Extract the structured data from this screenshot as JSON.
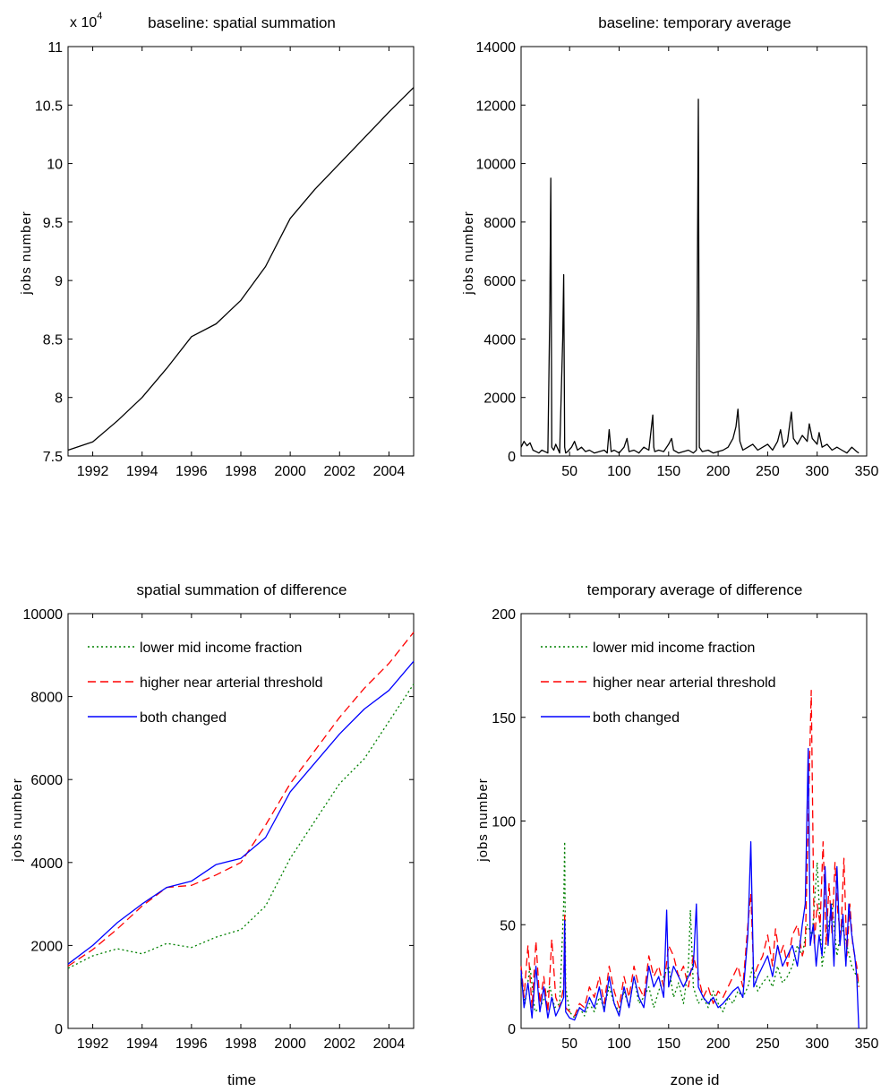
{
  "chart_data": [
    {
      "type": "line",
      "title": "baseline: spatial summation",
      "xlabel": "",
      "ylabel": "jobs number",
      "y_exponent_label": "x 10",
      "y_exponent_power": "4",
      "xlim": [
        1991,
        2005
      ],
      "ylim": [
        7.5,
        11
      ],
      "xticks": [
        1992,
        1994,
        1996,
        1998,
        2000,
        2002,
        2004
      ],
      "yticks": [
        7.5,
        8,
        8.5,
        9,
        9.5,
        10,
        10.5,
        11
      ],
      "ytick_labels": [
        "7.5",
        "8",
        "8.5",
        "9",
        "9.5",
        "10",
        "10.5",
        "11"
      ],
      "grid": false,
      "series": [
        {
          "color": "#000000",
          "dash": "solid",
          "x": [
            1991,
            1992,
            1993,
            1994,
            1995,
            1996,
            1997,
            1998,
            1999,
            2000,
            2001,
            2002,
            2003,
            2004,
            2005
          ],
          "y": [
            7.55,
            7.62,
            7.8,
            8.0,
            8.25,
            8.52,
            8.63,
            8.83,
            9.12,
            9.53,
            9.78,
            10.0,
            10.22,
            10.44,
            10.65
          ]
        }
      ]
    },
    {
      "type": "line",
      "title": "baseline: temporary average",
      "xlabel": "",
      "ylabel": "jobs number",
      "xlim": [
        1,
        350
      ],
      "ylim": [
        0,
        14000
      ],
      "xticks": [
        50,
        100,
        150,
        200,
        250,
        300,
        350
      ],
      "yticks": [
        0,
        2000,
        4000,
        6000,
        8000,
        10000,
        12000,
        14000
      ],
      "grid": false,
      "series": [
        {
          "color": "#000000",
          "dash": "solid",
          "x": [
            1,
            4,
            7,
            10,
            13,
            16,
            19,
            22,
            25,
            28,
            30,
            31,
            32,
            34,
            36,
            40,
            43,
            44,
            45,
            46,
            48,
            52,
            55,
            58,
            62,
            66,
            70,
            75,
            80,
            85,
            88,
            90,
            92,
            95,
            100,
            105,
            108,
            110,
            115,
            120,
            125,
            130,
            134,
            135,
            136,
            140,
            145,
            150,
            153,
            155,
            160,
            165,
            170,
            175,
            178,
            179,
            180,
            181,
            184,
            190,
            195,
            200,
            205,
            210,
            215,
            218,
            220,
            222,
            225,
            230,
            235,
            240,
            245,
            250,
            255,
            260,
            263,
            266,
            270,
            274,
            276,
            280,
            285,
            290,
            292,
            295,
            300,
            302,
            305,
            310,
            315,
            320,
            325,
            330,
            335,
            340,
            342
          ],
          "y": [
            300,
            500,
            350,
            450,
            200,
            150,
            100,
            200,
            150,
            100,
            5000,
            9500,
            300,
            200,
            400,
            100,
            4000,
            6200,
            300,
            100,
            150,
            300,
            500,
            200,
            300,
            150,
            200,
            100,
            150,
            200,
            100,
            900,
            150,
            200,
            100,
            300,
            600,
            150,
            200,
            100,
            300,
            200,
            1400,
            300,
            150,
            200,
            150,
            400,
            600,
            200,
            100,
            150,
            200,
            100,
            200,
            6100,
            12200,
            300,
            150,
            200,
            100,
            150,
            200,
            300,
            600,
            1000,
            1600,
            500,
            200,
            300,
            400,
            200,
            300,
            400,
            200,
            500,
            900,
            300,
            500,
            1500,
            600,
            400,
            700,
            500,
            1100,
            600,
            400,
            800,
            300,
            400,
            200,
            300,
            200,
            100,
            300,
            150,
            100
          ]
        }
      ]
    },
    {
      "type": "line",
      "title": "spatial summation of difference",
      "xlabel": "time",
      "ylabel": "jobs number",
      "xlim": [
        1991,
        2005
      ],
      "ylim": [
        0,
        10000
      ],
      "xticks": [
        1992,
        1994,
        1996,
        1998,
        2000,
        2002,
        2004
      ],
      "yticks": [
        0,
        2000,
        4000,
        6000,
        8000,
        10000
      ],
      "grid": false,
      "legend_position": "top-left",
      "series": [
        {
          "name": "lower mid income fraction",
          "color": "#008000",
          "dash": "dotted",
          "x": [
            1991,
            1992,
            1993,
            1994,
            1995,
            1996,
            1997,
            1998,
            1999,
            2000,
            2001,
            2002,
            2003,
            2004,
            2005
          ],
          "y": [
            1450,
            1750,
            1920,
            1800,
            2050,
            1950,
            2200,
            2380,
            2950,
            4100,
            5000,
            5900,
            6500,
            7400,
            8300
          ]
        },
        {
          "name": "higher near arterial threshold",
          "color": "#ff0000",
          "dash": "dashed",
          "x": [
            1991,
            1992,
            1993,
            1994,
            1995,
            1996,
            1997,
            1998,
            1999,
            2000,
            2001,
            2002,
            2003,
            2004,
            2005
          ],
          "y": [
            1500,
            1900,
            2400,
            2950,
            3400,
            3450,
            3700,
            4000,
            4900,
            5900,
            6700,
            7500,
            8200,
            8800,
            9550
          ]
        },
        {
          "name": "both changed",
          "color": "#0000ff",
          "dash": "solid",
          "x": [
            1991,
            1992,
            1993,
            1994,
            1995,
            1996,
            1997,
            1998,
            1999,
            2000,
            2001,
            2002,
            2003,
            2004,
            2005
          ],
          "y": [
            1550,
            2000,
            2550,
            3000,
            3400,
            3550,
            3950,
            4100,
            4600,
            5700,
            6400,
            7100,
            7700,
            8150,
            8850
          ]
        }
      ]
    },
    {
      "type": "line",
      "title": "temporary average of difference",
      "xlabel": "zone id",
      "ylabel": "jobs number",
      "xlim": [
        1,
        350
      ],
      "ylim": [
        0,
        200
      ],
      "xticks": [
        50,
        100,
        150,
        200,
        250,
        300,
        350
      ],
      "yticks": [
        0,
        50,
        100,
        150,
        200
      ],
      "grid": false,
      "legend_position": "top-left",
      "series": [
        {
          "name": "lower mid income fraction",
          "color": "#008000",
          "dash": "dotted",
          "x": [
            1,
            5,
            10,
            15,
            20,
            25,
            30,
            35,
            40,
            44,
            45,
            46,
            50,
            55,
            60,
            65,
            70,
            75,
            80,
            85,
            90,
            95,
            100,
            105,
            110,
            115,
            120,
            125,
            130,
            135,
            140,
            145,
            150,
            155,
            160,
            165,
            170,
            172,
            175,
            180,
            185,
            190,
            195,
            200,
            205,
            210,
            215,
            220,
            225,
            230,
            235,
            240,
            245,
            250,
            255,
            260,
            265,
            270,
            275,
            280,
            285,
            290,
            295,
            300,
            305,
            310,
            315,
            320,
            325,
            330,
            335,
            340,
            342
          ],
          "y": [
            25,
            12,
            30,
            8,
            10,
            15,
            20,
            10,
            12,
            60,
            90,
            20,
            8,
            5,
            10,
            6,
            12,
            8,
            15,
            10,
            20,
            12,
            8,
            18,
            10,
            25,
            12,
            15,
            20,
            10,
            18,
            25,
            30,
            15,
            22,
            12,
            30,
            57,
            20,
            12,
            15,
            10,
            18,
            12,
            8,
            15,
            12,
            18,
            15,
            20,
            30,
            18,
            22,
            25,
            20,
            30,
            22,
            25,
            30,
            40,
            35,
            50,
            45,
            80,
            30,
            45,
            60,
            35,
            50,
            40,
            30,
            25,
            20
          ]
        },
        {
          "name": "higher near arterial threshold",
          "color": "#ff0000",
          "dash": "dashed",
          "x": [
            1,
            4,
            8,
            12,
            16,
            20,
            24,
            28,
            32,
            36,
            40,
            44,
            45,
            46,
            50,
            55,
            60,
            65,
            70,
            75,
            80,
            85,
            90,
            95,
            100,
            105,
            110,
            115,
            120,
            125,
            130,
            135,
            140,
            145,
            150,
            155,
            160,
            165,
            170,
            175,
            180,
            185,
            190,
            195,
            200,
            205,
            210,
            215,
            220,
            225,
            230,
            233,
            236,
            240,
            245,
            250,
            255,
            258,
            262,
            266,
            270,
            275,
            280,
            285,
            288,
            291,
            294,
            297,
            300,
            303,
            306,
            309,
            312,
            315,
            318,
            321,
            324,
            327,
            330,
            333,
            336,
            340,
            342
          ],
          "y": [
            30,
            15,
            40,
            10,
            42,
            12,
            25,
            8,
            43,
            15,
            10,
            20,
            55,
            10,
            8,
            6,
            12,
            10,
            20,
            15,
            25,
            12,
            30,
            18,
            10,
            25,
            15,
            30,
            20,
            15,
            35,
            25,
            30,
            20,
            40,
            35,
            25,
            30,
            20,
            35,
            25,
            15,
            20,
            12,
            18,
            15,
            20,
            25,
            30,
            20,
            50,
            65,
            25,
            30,
            35,
            45,
            30,
            48,
            35,
            40,
            30,
            45,
            50,
            35,
            40,
            100,
            163,
            40,
            60,
            50,
            90,
            40,
            70,
            45,
            80,
            55,
            45,
            82,
            35,
            60,
            40,
            30,
            20
          ]
        },
        {
          "name": "both changed",
          "color": "#0000ff",
          "dash": "solid",
          "x": [
            1,
            4,
            8,
            12,
            16,
            20,
            24,
            28,
            32,
            36,
            40,
            44,
            45,
            46,
            50,
            55,
            60,
            65,
            70,
            75,
            80,
            85,
            90,
            95,
            100,
            105,
            110,
            115,
            120,
            125,
            130,
            135,
            140,
            145,
            148,
            150,
            155,
            160,
            165,
            170,
            175,
            178,
            180,
            185,
            190,
            195,
            200,
            205,
            210,
            215,
            220,
            225,
            230,
            233,
            236,
            240,
            245,
            250,
            255,
            260,
            265,
            270,
            275,
            280,
            285,
            288,
            291,
            293,
            296,
            299,
            302,
            305,
            308,
            311,
            314,
            317,
            320,
            323,
            326,
            329,
            332,
            335,
            338,
            340,
            342
          ],
          "y": [
            28,
            10,
            22,
            5,
            30,
            8,
            20,
            5,
            15,
            6,
            10,
            15,
            52,
            8,
            5,
            4,
            10,
            8,
            15,
            10,
            20,
            8,
            25,
            12,
            6,
            20,
            10,
            25,
            15,
            10,
            30,
            20,
            25,
            15,
            57,
            20,
            30,
            25,
            20,
            25,
            30,
            60,
            20,
            15,
            12,
            15,
            10,
            12,
            15,
            18,
            20,
            15,
            45,
            90,
            20,
            25,
            30,
            35,
            25,
            40,
            30,
            35,
            40,
            30,
            50,
            60,
            135,
            40,
            50,
            30,
            45,
            35,
            78,
            40,
            60,
            30,
            78,
            40,
            55,
            30,
            60,
            45,
            35,
            25,
            0
          ]
        }
      ]
    }
  ]
}
